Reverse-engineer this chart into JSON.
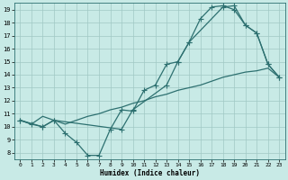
{
  "xlabel": "Humidex (Indice chaleur)",
  "bg_color": "#c8eae6",
  "grid_color": "#a0c8c4",
  "line_color": "#2d7070",
  "xlim": [
    -0.5,
    23.5
  ],
  "ylim": [
    7.5,
    19.5
  ],
  "xticks": [
    0,
    1,
    2,
    3,
    4,
    5,
    6,
    7,
    8,
    9,
    10,
    11,
    12,
    13,
    14,
    15,
    16,
    17,
    18,
    19,
    20,
    21,
    22,
    23
  ],
  "yticks": [
    8,
    9,
    10,
    11,
    12,
    13,
    14,
    15,
    16,
    17,
    18,
    19
  ],
  "curve1_x": [
    0,
    1,
    2,
    3,
    4,
    5,
    6,
    7,
    8,
    9,
    10,
    11,
    12,
    13,
    14,
    15,
    16,
    17,
    18,
    19,
    20,
    21,
    22,
    23
  ],
  "curve1_y": [
    10.5,
    10.2,
    10.0,
    10.5,
    9.5,
    8.8,
    7.8,
    7.8,
    9.8,
    11.3,
    11.2,
    12.8,
    13.2,
    14.8,
    15.0,
    16.5,
    18.3,
    19.2,
    19.3,
    19.0,
    17.8,
    17.2,
    14.8,
    13.8
  ],
  "curve2_x": [
    0,
    1,
    2,
    3,
    4,
    5,
    6,
    7,
    8,
    9,
    10,
    11,
    12,
    13,
    14,
    15,
    16,
    17,
    18,
    19,
    20,
    21,
    22,
    23
  ],
  "curve2_y": [
    10.5,
    10.2,
    10.8,
    10.5,
    10.2,
    10.5,
    10.8,
    11.0,
    11.3,
    11.5,
    11.8,
    12.0,
    12.3,
    12.5,
    12.8,
    13.0,
    13.2,
    13.5,
    13.8,
    14.0,
    14.2,
    14.3,
    14.5,
    13.8
  ],
  "curve3_x": [
    0,
    2,
    3,
    9,
    10,
    13,
    14,
    15,
    18,
    19,
    20,
    21,
    22,
    23
  ],
  "curve3_y": [
    10.5,
    10.0,
    10.5,
    9.8,
    11.3,
    13.2,
    15.0,
    16.5,
    19.2,
    19.3,
    17.8,
    17.2,
    14.8,
    13.8
  ]
}
